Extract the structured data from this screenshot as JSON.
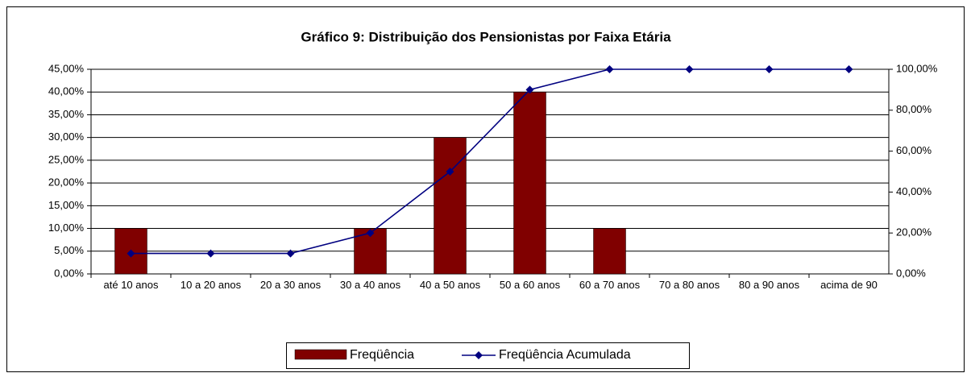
{
  "chart_data": {
    "type": "bar_line",
    "title": "Gráfico 9: Distribuição dos Pensionistas por Faixa Etária",
    "categories": [
      "até 10 anos",
      "10 a 20 anos",
      "20 a 30 anos",
      "30 a 40 anos",
      "40 a 50 anos",
      "50 a 60 anos",
      "60 a 70 anos",
      "70 a 80 anos",
      "80 a 90 anos",
      "acima de 90"
    ],
    "series": [
      {
        "name": "Freqüência",
        "color": "#800000",
        "type": "bar",
        "values": [
          10,
          0,
          0,
          10,
          30,
          40,
          10,
          0,
          0,
          0
        ]
      },
      {
        "name": "Freqüência Acumulada",
        "color": "#000080",
        "type": "line",
        "axis": "y2",
        "values": [
          10,
          10,
          10,
          20,
          50,
          90,
          100,
          100,
          100,
          100
        ]
      }
    ],
    "ylim": [
      0,
      45
    ],
    "yticks": [
      {
        "value": 0,
        "label": "0,00%"
      },
      {
        "value": 5,
        "label": "5,00%"
      },
      {
        "value": 10,
        "label": "10,00%"
      },
      {
        "value": 15,
        "label": "15,00%"
      },
      {
        "value": 20,
        "label": "20,00%"
      },
      {
        "value": 25,
        "label": "25,00%"
      },
      {
        "value": 30,
        "label": "30,00%"
      },
      {
        "value": 35,
        "label": "35,00%"
      },
      {
        "value": 40,
        "label": "40,00%"
      },
      {
        "value": 45,
        "label": "45,00%"
      }
    ],
    "y2lim": [
      0,
      100
    ],
    "y2ticks": [
      {
        "value": 0,
        "label": "0,00%"
      },
      {
        "value": 20,
        "label": "20,00%"
      },
      {
        "value": 40,
        "label": "40,00%"
      },
      {
        "value": 60,
        "label": "60,00%"
      },
      {
        "value": 80,
        "label": "80,00%"
      },
      {
        "value": 100,
        "label": "100,00%"
      }
    ],
    "grid": true,
    "legend": "bottom"
  }
}
